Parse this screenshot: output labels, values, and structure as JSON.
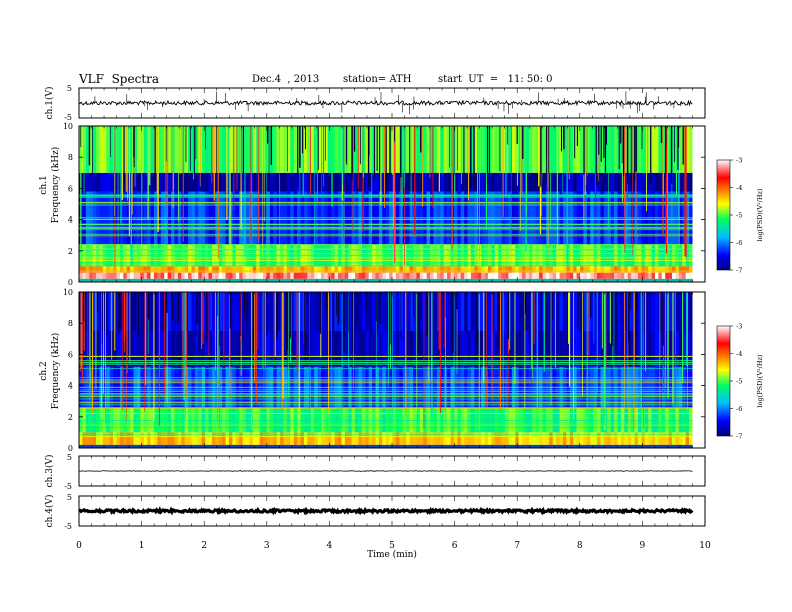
{
  "header": {
    "title": "VLF  Spectra",
    "date": "Dec.4  , 2013",
    "station": "station= ATH",
    "start": "start  UT  =   11: 50: 0"
  },
  "chart_data": [
    {
      "type": "line",
      "panel": "ch1-waveform",
      "ylabel": "ch.1(V)",
      "ylim": [
        -5,
        5
      ],
      "y_ticks": [
        "5",
        "-5"
      ],
      "baseline": 0,
      "line_color": "#000000"
    },
    {
      "type": "heatmap",
      "panel": "ch1-spectrogram",
      "ylabel_top": "ch.1",
      "ylabel": "Frequency  (kHz)",
      "ylim": [
        0,
        10
      ],
      "y_ticks": [
        "0",
        "2",
        "4",
        "6",
        "8",
        "10"
      ],
      "xlim": [
        0,
        10
      ],
      "data_end_min": 9.8,
      "colorbar": {
        "label": "log(PSD)(V²/Hz)",
        "range": [
          -7,
          -3
        ],
        "ticks": [
          "-3",
          "-4",
          "-5",
          "-6",
          "-7"
        ],
        "colors": [
          "#000080",
          "#0000ff",
          "#00bfff",
          "#00ff60",
          "#ffff00",
          "#ff8000",
          "#ff0000",
          "#ffffff"
        ]
      },
      "bands": [
        {
          "f_range": [
            0.2,
            0.6
          ],
          "log_psd": -3.2
        },
        {
          "f_range": [
            0.6,
            1.0
          ],
          "log_psd": -4.3
        },
        {
          "f_range": [
            1.0,
            2.4
          ],
          "log_psd": -5.0
        },
        {
          "f_range": [
            2.4,
            5.8
          ],
          "log_psd": -6.3
        },
        {
          "f_range": [
            5.8,
            7.0
          ],
          "log_psd": -6.8
        },
        {
          "f_range": [
            7.0,
            10.0
          ],
          "log_psd": -5.0
        }
      ]
    },
    {
      "type": "heatmap",
      "panel": "ch2-spectrogram",
      "ylabel_top": "ch.2",
      "ylabel": "Frequency  (kHz)",
      "ylim": [
        0,
        10
      ],
      "y_ticks": [
        "0",
        "2",
        "4",
        "6",
        "8",
        "10"
      ],
      "xlim": [
        0,
        10
      ],
      "data_end_min": 9.8,
      "colorbar": {
        "label": "log(PSD)(V²/Hz)",
        "range": [
          -7,
          -3
        ],
        "ticks": [
          "-3",
          "-4",
          "-5",
          "-6",
          "-7"
        ],
        "colors": [
          "#000080",
          "#0000ff",
          "#00bfff",
          "#00ff60",
          "#ffff00",
          "#ff8000",
          "#ff0000",
          "#ffffff"
        ]
      },
      "bands": [
        {
          "f_range": [
            0.2,
            1.0
          ],
          "log_psd": -4.4
        },
        {
          "f_range": [
            1.0,
            2.6
          ],
          "log_psd": -5.1
        },
        {
          "f_range": [
            2.6,
            5.2
          ],
          "log_psd": -6.2
        },
        {
          "f_range": [
            5.2,
            7.5
          ],
          "log_psd": -6.7
        },
        {
          "f_range": [
            7.5,
            10.0
          ],
          "log_psd": -6.6
        }
      ]
    },
    {
      "type": "line",
      "panel": "ch3-waveform",
      "ylabel": "ch.3(V)",
      "ylim": [
        -5,
        5
      ],
      "y_ticks": [
        "5",
        "-5"
      ],
      "baseline": 0,
      "line_color": "#000000"
    },
    {
      "type": "line",
      "panel": "ch4-waveform",
      "ylabel": "ch.4(V)",
      "ylim": [
        -5,
        5
      ],
      "y_ticks": [
        "5",
        "-5"
      ],
      "baseline": 0,
      "line_color": "#000000"
    }
  ],
  "x_axis": {
    "label": "Time  (min)",
    "ticks": [
      "0",
      "1",
      "2",
      "3",
      "4",
      "5",
      "6",
      "7",
      "8",
      "9",
      "10"
    ],
    "range": [
      0,
      10
    ]
  }
}
